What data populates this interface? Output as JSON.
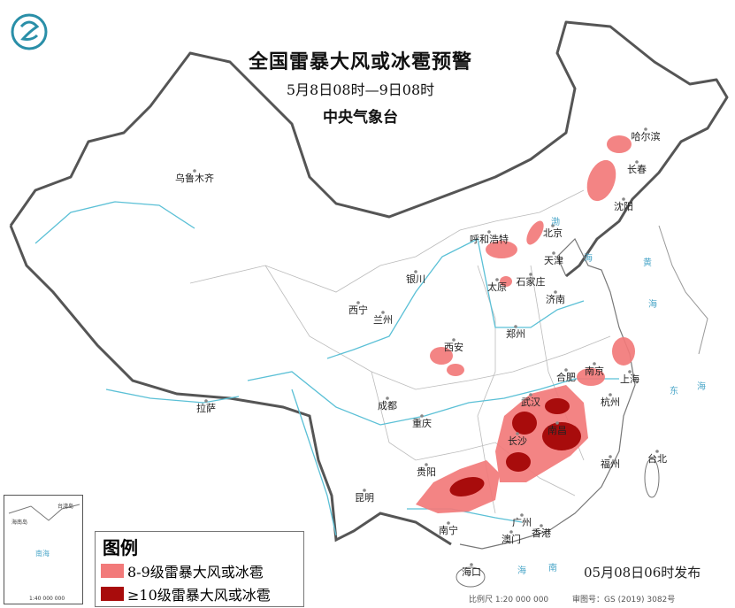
{
  "header": {
    "title": "全国雷暴大风或冰雹预警",
    "subtitle": "5月8日08时—9日08时",
    "issuer": "中央气象台",
    "logo_icon": "cma-logo-icon"
  },
  "cities": [
    {
      "name": "乌鲁木齐",
      "lon": 87.6,
      "lat": 43.8
    },
    {
      "name": "哈尔滨",
      "lon": 126.6,
      "lat": 45.8
    },
    {
      "name": "长春",
      "lon": 125.3,
      "lat": 43.9
    },
    {
      "name": "沈阳",
      "lon": 123.4,
      "lat": 41.8
    },
    {
      "name": "呼和浩特",
      "lon": 111.7,
      "lat": 40.8
    },
    {
      "name": "北京",
      "lon": 116.4,
      "lat": 39.9
    },
    {
      "name": "天津",
      "lon": 117.2,
      "lat": 39.1
    },
    {
      "name": "石家庄",
      "lon": 114.5,
      "lat": 38.0
    },
    {
      "name": "太原",
      "lon": 112.5,
      "lat": 37.9
    },
    {
      "name": "济南",
      "lon": 117.0,
      "lat": 36.7
    },
    {
      "name": "银川",
      "lon": 106.3,
      "lat": 38.5
    },
    {
      "name": "西宁",
      "lon": 101.8,
      "lat": 36.6
    },
    {
      "name": "兰州",
      "lon": 103.8,
      "lat": 36.1
    },
    {
      "name": "郑州",
      "lon": 113.6,
      "lat": 34.7
    },
    {
      "name": "西安",
      "lon": 108.9,
      "lat": 34.3
    },
    {
      "name": "合肥",
      "lon": 117.3,
      "lat": 31.8
    },
    {
      "name": "南京",
      "lon": 118.8,
      "lat": 32.1
    },
    {
      "name": "上海",
      "lon": 121.5,
      "lat": 31.2
    },
    {
      "name": "杭州",
      "lon": 120.2,
      "lat": 30.3
    },
    {
      "name": "武汉",
      "lon": 114.3,
      "lat": 30.6
    },
    {
      "name": "成都",
      "lon": 104.1,
      "lat": 30.7
    },
    {
      "name": "重庆",
      "lon": 106.5,
      "lat": 29.6
    },
    {
      "name": "长沙",
      "lon": 113.0,
      "lat": 28.2
    },
    {
      "name": "南昌",
      "lon": 115.9,
      "lat": 28.7
    },
    {
      "name": "福州",
      "lon": 119.3,
      "lat": 26.1
    },
    {
      "name": "台北",
      "lon": 121.5,
      "lat": 25.0
    },
    {
      "name": "贵阳",
      "lon": 106.7,
      "lat": 26.6
    },
    {
      "name": "昆明",
      "lon": 102.7,
      "lat": 25.0
    },
    {
      "name": "拉萨",
      "lon": 91.1,
      "lat": 29.7
    },
    {
      "name": "南宁",
      "lon": 108.4,
      "lat": 22.8
    },
    {
      "name": "广州",
      "lon": 113.3,
      "lat": 23.1
    },
    {
      "name": "香港",
      "lon": 114.2,
      "lat": 22.3
    },
    {
      "name": "澳门",
      "lon": 113.5,
      "lat": 22.2
    },
    {
      "name": "海口",
      "lon": 110.3,
      "lat": 20.0
    }
  ],
  "seas": [
    "渤",
    "海",
    "黄",
    "海",
    "东",
    "海",
    "南",
    "海"
  ],
  "legend": {
    "title": "图例",
    "items": [
      {
        "label": "8-9级雷暴大风或冰雹",
        "color": "#f27a7a"
      },
      {
        "label": "≥10级雷暴大风或冰雹",
        "color": "#a80c0c"
      }
    ]
  },
  "inset": {
    "labels": [
      "台湾岛",
      "海南岛",
      "南海",
      "1:40 000 000"
    ]
  },
  "footer": {
    "published": "05月08日06时发布",
    "scale": "比例尺 1:20 000 000",
    "map_number": "审图号：GS (2019) 3082号"
  }
}
